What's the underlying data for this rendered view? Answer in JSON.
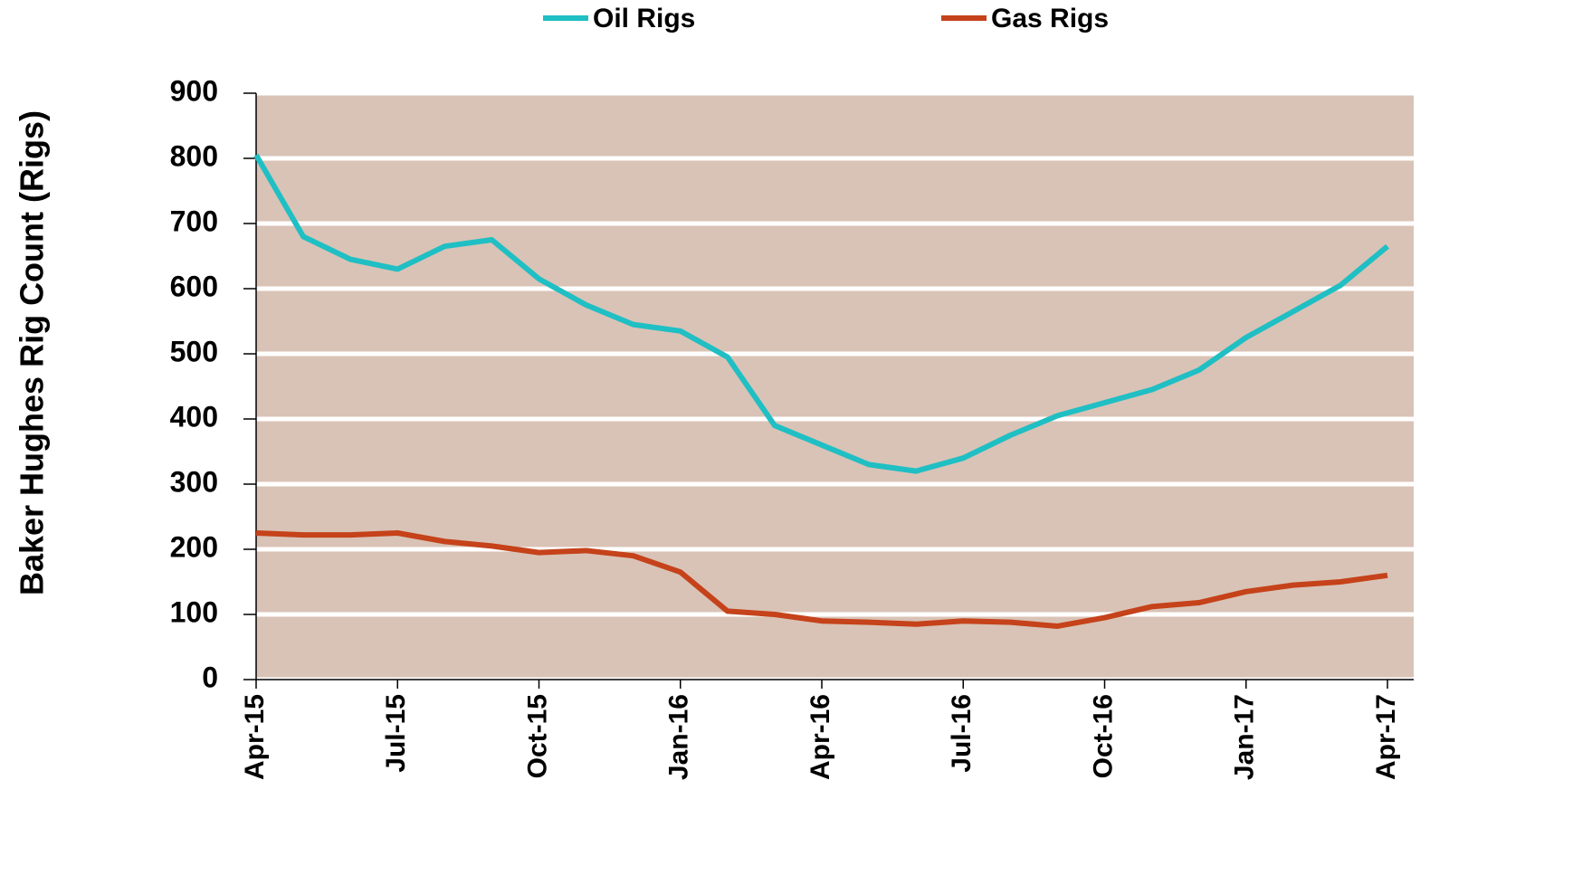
{
  "chart_data": {
    "type": "line",
    "y_axis_label": "Baker Hughes Rig Count (Rigs)",
    "x": [
      "2015-04",
      "2015-05",
      "2015-06",
      "2015-07",
      "2015-08",
      "2015-09",
      "2015-10",
      "2015-11",
      "2015-12",
      "2016-01",
      "2016-02",
      "2016-03",
      "2016-04",
      "2016-05",
      "2016-06",
      "2016-07",
      "2016-08",
      "2016-09",
      "2016-10",
      "2016-11",
      "2016-12",
      "2017-01",
      "2017-02",
      "2017-03",
      "2017-04"
    ],
    "series": [
      {
        "name": "Oil Rigs",
        "color": "#1fbfc4",
        "values": [
          805,
          680,
          645,
          630,
          665,
          675,
          615,
          575,
          545,
          535,
          495,
          390,
          360,
          330,
          320,
          340,
          375,
          405,
          425,
          445,
          475,
          525,
          565,
          605,
          665
        ]
      },
      {
        "name": "Gas Rigs",
        "color": "#c5421a",
        "values": [
          225,
          222,
          222,
          225,
          212,
          205,
          195,
          198,
          190,
          165,
          105,
          100,
          90,
          88,
          85,
          90,
          88,
          82,
          95,
          112,
          118,
          135,
          145,
          150,
          160
        ]
      }
    ],
    "xlim": [
      "2015-04",
      "2017-04"
    ],
    "xticks": [
      {
        "value": "2015-04",
        "label": "Apr-15"
      },
      {
        "value": "2015-07",
        "label": "Jul-15"
      },
      {
        "value": "2015-10",
        "label": "Oct-15"
      },
      {
        "value": "2016-01",
        "label": "Jan-16"
      },
      {
        "value": "2016-04",
        "label": "Apr-16"
      },
      {
        "value": "2016-07",
        "label": "Jul-16"
      },
      {
        "value": "2016-10",
        "label": "Oct-16"
      },
      {
        "value": "2017-01",
        "label": "Jan-17"
      },
      {
        "value": "2017-04",
        "label": "Apr-17"
      }
    ],
    "ylim": [
      0,
      900
    ],
    "yticks": [
      0,
      100,
      200,
      300,
      400,
      500,
      600,
      700,
      800,
      900
    ],
    "grid": true,
    "background": "#d9c3b6",
    "legend": "top"
  }
}
